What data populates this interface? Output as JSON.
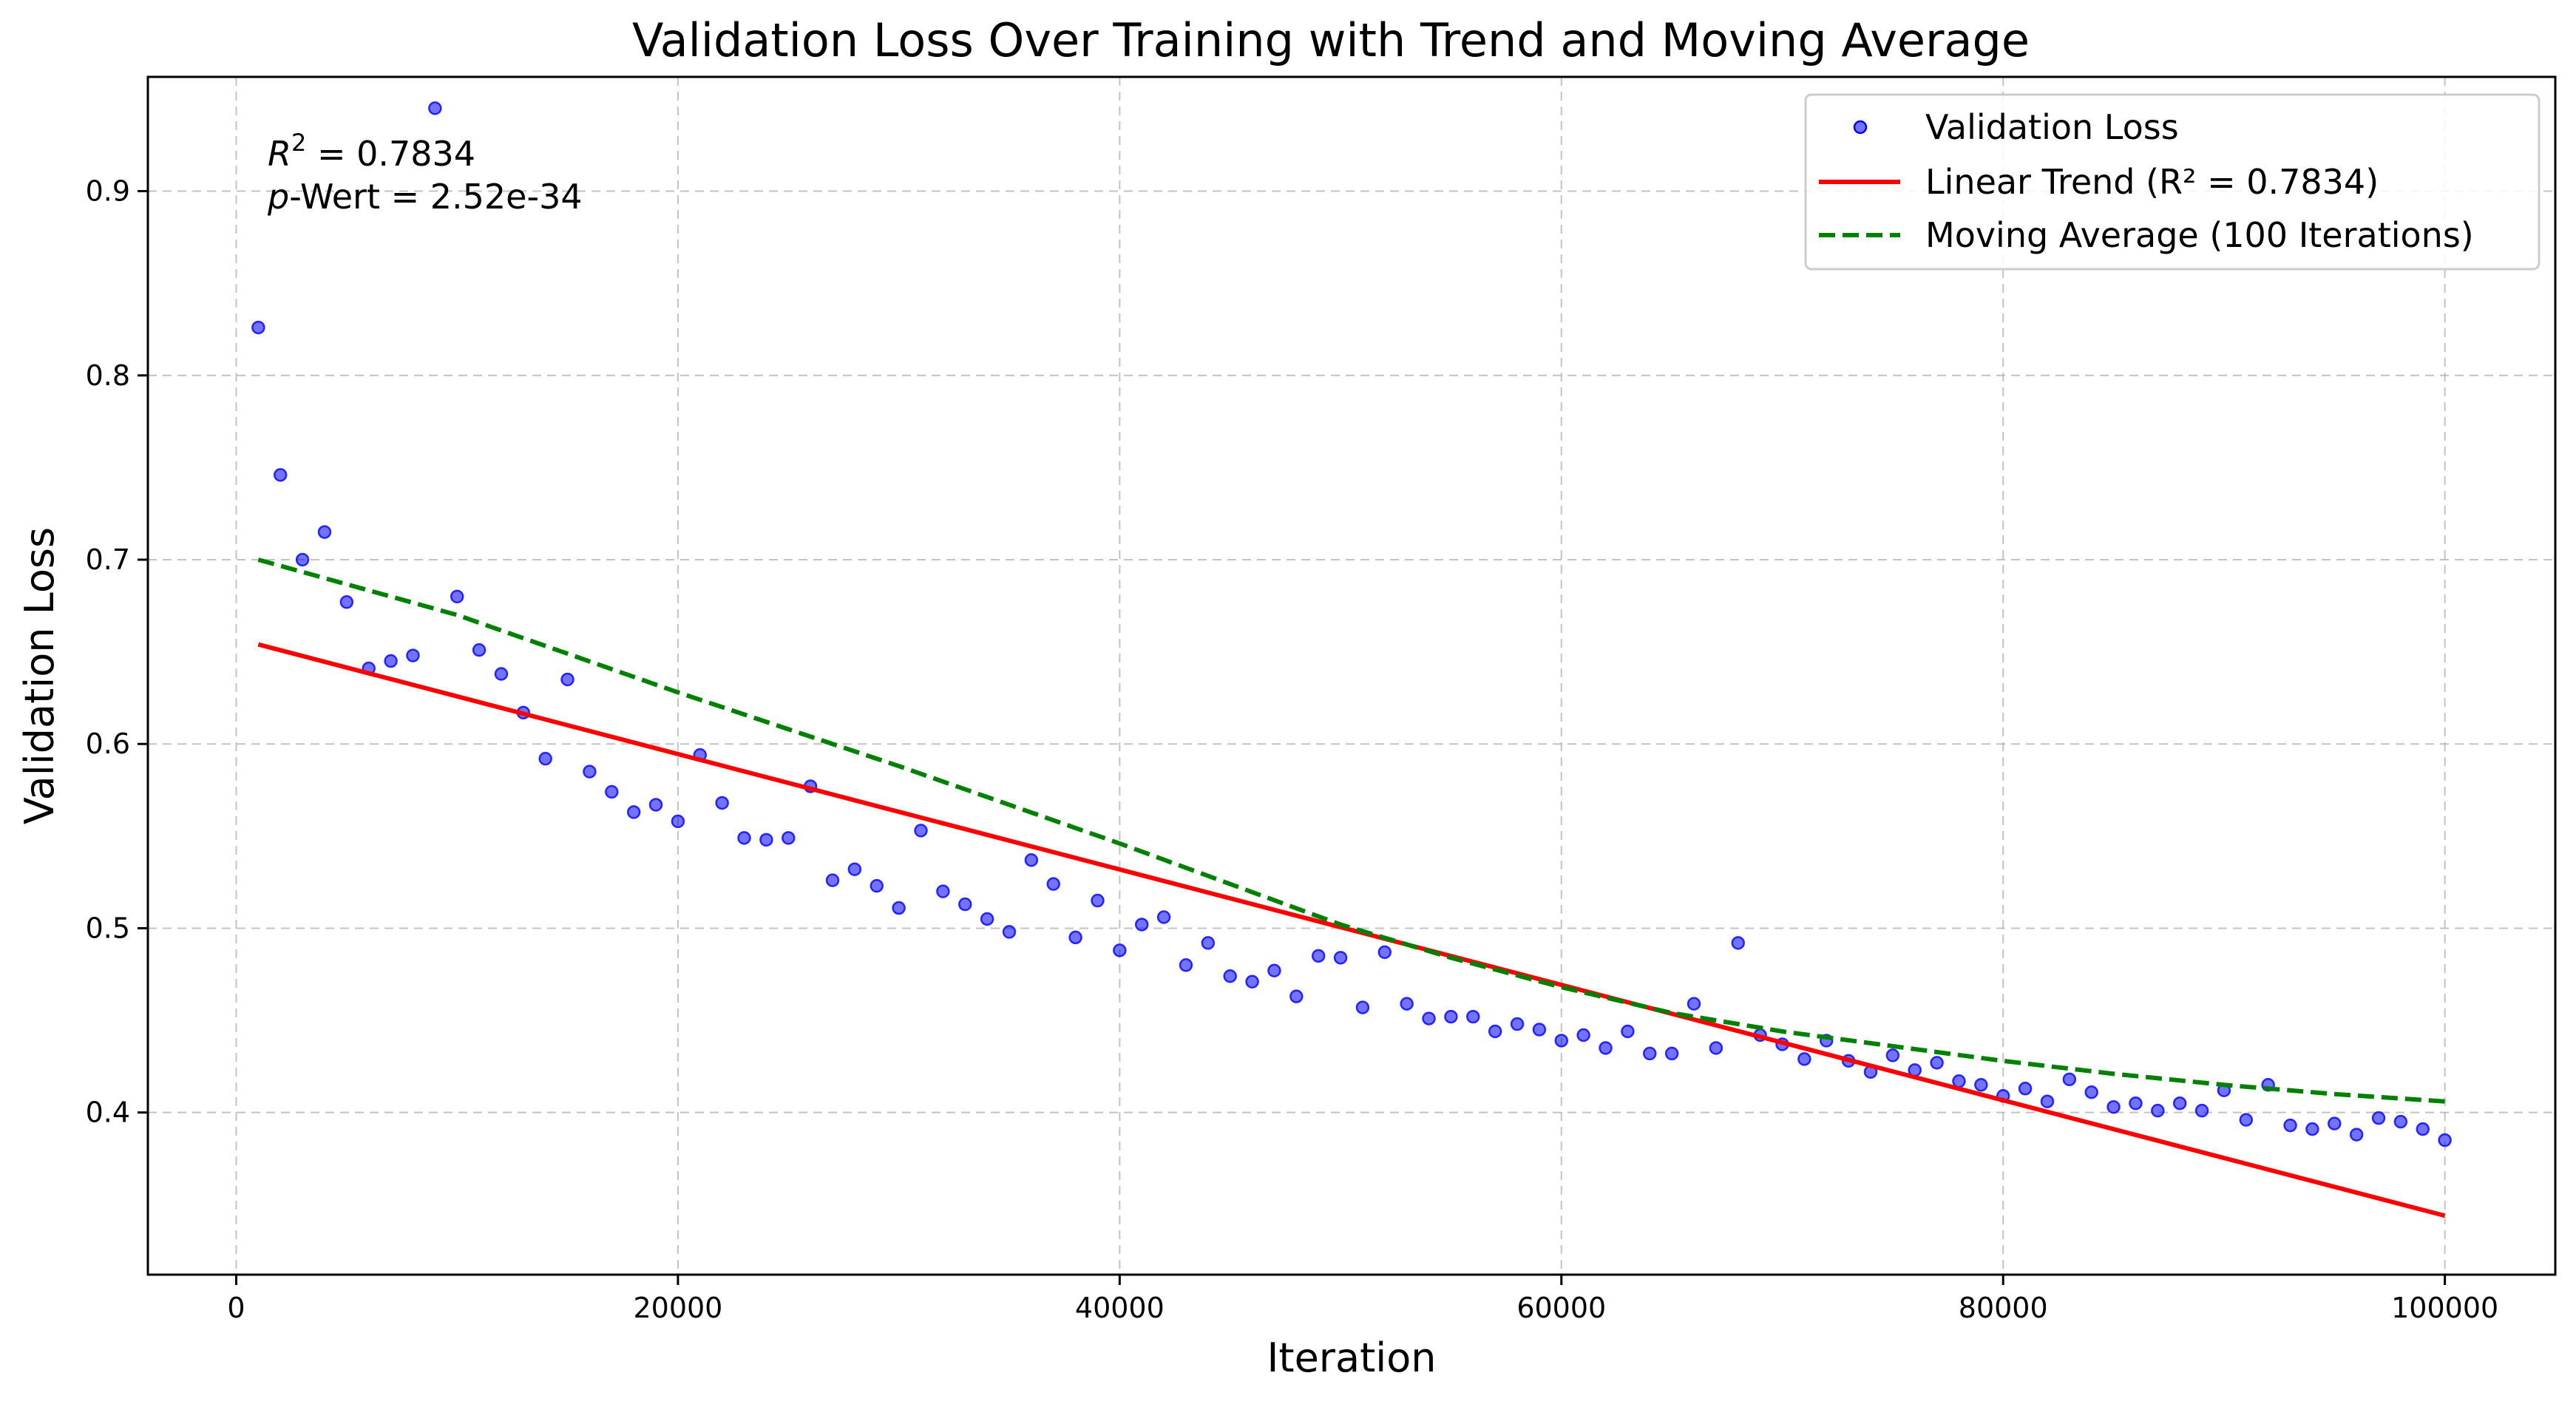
{
  "chart_data": {
    "type": "scatter",
    "title": "Validation Loss Over Training with Trend and Moving Average",
    "xlabel": "Iteration",
    "ylabel": "Validation Loss",
    "xlim": [
      -4000,
      105000
    ],
    "ylim": [
      0.312,
      0.962
    ],
    "xticks": [
      0,
      20000,
      40000,
      60000,
      80000,
      100000
    ],
    "xtick_labels": [
      "0",
      "20000",
      "40000",
      "60000",
      "80000",
      "100000"
    ],
    "yticks": [
      0.4,
      0.5,
      0.6,
      0.7,
      0.8,
      0.9
    ],
    "ytick_labels": [
      "0.4",
      "0.5",
      "0.6",
      "0.7",
      "0.8",
      "0.9"
    ],
    "grid": true,
    "legend_position": "top-right",
    "annotation": {
      "r2_label": "R",
      "r2_sup": "2",
      "r2_value": " = 0.7834",
      "p_label": "p",
      "p_value": "-Wert = 2.52e-34"
    },
    "series": [
      {
        "name": "Validation Loss",
        "kind": "scatter",
        "color": "#0000ff",
        "x": [
          1000,
          2000,
          3000,
          4000,
          5000,
          6000,
          7000,
          8000,
          9000,
          10000,
          11000,
          12000,
          13000,
          14000,
          15000,
          16000,
          17000,
          18000,
          19000,
          20000,
          21000,
          22000,
          23000,
          24000,
          25000,
          26000,
          27000,
          28000,
          29000,
          30000,
          31000,
          32000,
          33000,
          34000,
          35000,
          36000,
          37000,
          38000,
          39000,
          40000,
          41000,
          42000,
          43000,
          44000,
          45000,
          46000,
          47000,
          48000,
          49000,
          50000,
          51000,
          52000,
          53000,
          54000,
          55000,
          56000,
          57000,
          58000,
          59000,
          60000,
          61000,
          62000,
          63000,
          64000,
          65000,
          66000,
          67000,
          68000,
          69000,
          70000,
          71000,
          72000,
          73000,
          74000,
          75000,
          76000,
          77000,
          78000,
          79000,
          80000,
          81000,
          82000,
          83000,
          84000,
          85000,
          86000,
          87000,
          88000,
          89000,
          90000,
          91000,
          92000,
          93000,
          94000,
          95000,
          96000,
          97000,
          98000,
          99000,
          100000
        ],
        "y": [
          0.826,
          0.746,
          0.7,
          0.715,
          0.677,
          0.641,
          0.645,
          0.648,
          0.945,
          0.68,
          0.651,
          0.638,
          0.617,
          0.592,
          0.635,
          0.585,
          0.574,
          0.563,
          0.567,
          0.558,
          0.594,
          0.568,
          0.549,
          0.548,
          0.549,
          0.577,
          0.526,
          0.532,
          0.523,
          0.511,
          0.553,
          0.52,
          0.513,
          0.505,
          0.498,
          0.537,
          0.524,
          0.495,
          0.515,
          0.488,
          0.502,
          0.506,
          0.48,
          0.492,
          0.474,
          0.471,
          0.477,
          0.463,
          0.485,
          0.484,
          0.457,
          0.487,
          0.459,
          0.451,
          0.452,
          0.452,
          0.444,
          0.448,
          0.445,
          0.439,
          0.442,
          0.435,
          0.444,
          0.432,
          0.432,
          0.459,
          0.435,
          0.492,
          0.442,
          0.437,
          0.429,
          0.439,
          0.428,
          0.422,
          0.431,
          0.423,
          0.427,
          0.417,
          0.415,
          0.409,
          0.413,
          0.406,
          0.418,
          0.411,
          0.403,
          0.405,
          0.401,
          0.405,
          0.401,
          0.412,
          0.396,
          0.415,
          0.393,
          0.391,
          0.394,
          0.388,
          0.397,
          0.395,
          0.391,
          0.385
        ]
      },
      {
        "name": "Linear Trend (R² = 0.7834)",
        "kind": "line",
        "color": "#ff0000",
        "style": "solid",
        "x": [
          1000,
          100000
        ],
        "y": [
          0.654,
          0.344
        ]
      },
      {
        "name": "Moving Average (100 Iterations)",
        "kind": "line",
        "color": "#008000",
        "style": "dashed",
        "x": [
          1000,
          10000,
          20000,
          30000,
          40000,
          50000,
          55000,
          60000,
          65000,
          70000,
          75000,
          80000,
          85000,
          90000,
          95000,
          100000
        ],
        "y": [
          0.7,
          0.67,
          0.628,
          0.588,
          0.546,
          0.502,
          0.484,
          0.468,
          0.454,
          0.444,
          0.436,
          0.428,
          0.421,
          0.415,
          0.41,
          0.406
        ]
      }
    ]
  }
}
